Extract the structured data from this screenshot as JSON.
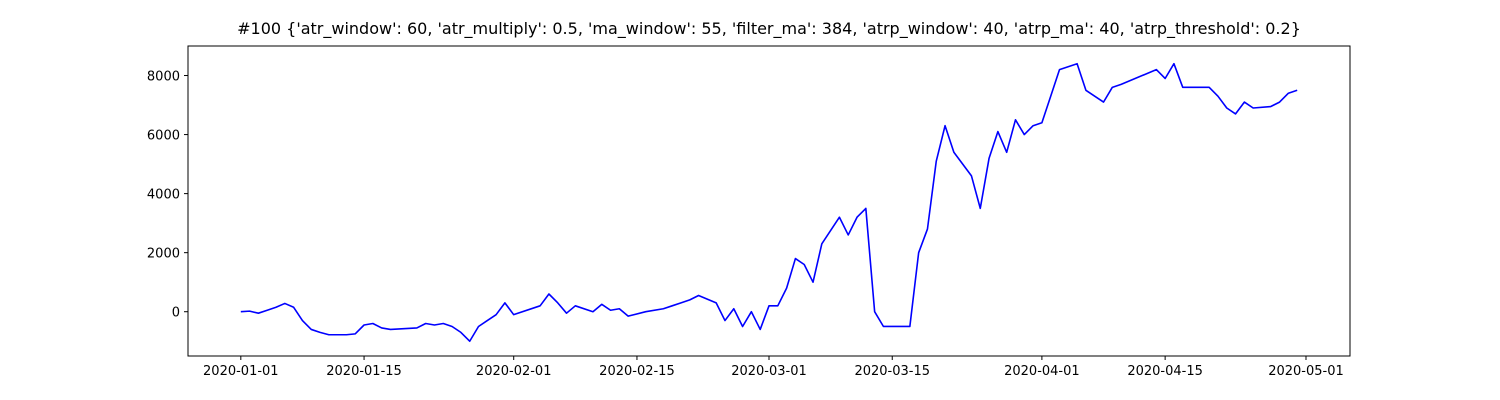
{
  "chart_data": {
    "type": "line",
    "title": "#100 {'atr_window': 60, 'atr_multiply': 0.5, 'ma_window': 55, 'filter_ma': 384, 'atrp_window': 40, 'atrp_ma': 40, 'atrp_threshold': 0.2}",
    "x": [
      "2020-01-01",
      "2020-01-02",
      "2020-01-03",
      "2020-01-04",
      "2020-01-05",
      "2020-01-06",
      "2020-01-07",
      "2020-01-08",
      "2020-01-09",
      "2020-01-10",
      "2020-01-11",
      "2020-01-13",
      "2020-01-14",
      "2020-01-15",
      "2020-01-16",
      "2020-01-17",
      "2020-01-18",
      "2020-01-21",
      "2020-01-22",
      "2020-01-23",
      "2020-01-24",
      "2020-01-25",
      "2020-01-26",
      "2020-01-27",
      "2020-01-28",
      "2020-01-29",
      "2020-01-30",
      "2020-01-31",
      "2020-02-01",
      "2020-02-04",
      "2020-02-05",
      "2020-02-06",
      "2020-02-07",
      "2020-02-08",
      "2020-02-10",
      "2020-02-11",
      "2020-02-12",
      "2020-02-13",
      "2020-02-14",
      "2020-02-16",
      "2020-02-18",
      "2020-02-19",
      "2020-02-20",
      "2020-02-21",
      "2020-02-22",
      "2020-02-24",
      "2020-02-25",
      "2020-02-26",
      "2020-02-27",
      "2020-02-28",
      "2020-02-29",
      "2020-03-01",
      "2020-03-02",
      "2020-03-03",
      "2020-03-04",
      "2020-03-05",
      "2020-03-06",
      "2020-03-07",
      "2020-03-09",
      "2020-03-10",
      "2020-03-11",
      "2020-03-12",
      "2020-03-13",
      "2020-03-14",
      "2020-03-17",
      "2020-03-18",
      "2020-03-19",
      "2020-03-20",
      "2020-03-21",
      "2020-03-22",
      "2020-03-24",
      "2020-03-25",
      "2020-03-26",
      "2020-03-27",
      "2020-03-28",
      "2020-03-29",
      "2020-03-30",
      "2020-03-31",
      "2020-04-01",
      "2020-04-02",
      "2020-04-03",
      "2020-04-05",
      "2020-04-06",
      "2020-04-07",
      "2020-04-08",
      "2020-04-09",
      "2020-04-10",
      "2020-04-14",
      "2020-04-15",
      "2020-04-16",
      "2020-04-17",
      "2020-04-20",
      "2020-04-21",
      "2020-04-22",
      "2020-04-23",
      "2020-04-24",
      "2020-04-25",
      "2020-04-27",
      "2020-04-28",
      "2020-04-29",
      "2020-04-30"
    ],
    "series": [
      {
        "color": "#0000ff",
        "values": [
          0,
          20,
          -50,
          50,
          150,
          280,
          150,
          -300,
          -600,
          -700,
          -780,
          -780,
          -750,
          -450,
          -400,
          -550,
          -600,
          -550,
          -400,
          -450,
          -400,
          -500,
          -700,
          -1000,
          -500,
          -300,
          -100,
          300,
          -100,
          200,
          600,
          300,
          -50,
          200,
          0,
          250,
          50,
          100,
          -150,
          0,
          100,
          200,
          300,
          400,
          550,
          300,
          -300,
          100,
          -500,
          0,
          -600,
          200,
          200,
          800,
          1800,
          1600,
          1000,
          2300,
          3200,
          2600,
          3200,
          3500,
          0,
          -500,
          -500,
          2000,
          2800,
          5100,
          6300,
          5400,
          4600,
          3500,
          5200,
          6100,
          5400,
          6500,
          6000,
          6300,
          6400,
          7300,
          8200,
          8400,
          7500,
          7300,
          7100,
          7600,
          7700,
          8200,
          7900,
          8400,
          7600,
          7600,
          7300,
          6900,
          6700,
          7100,
          6900,
          6950,
          7100,
          7400,
          7500
        ]
      }
    ],
    "xlim": [
      "2019-12-26",
      "2020-05-06"
    ],
    "xticks": [
      "2020-01-01",
      "2020-01-15",
      "2020-02-01",
      "2020-02-15",
      "2020-03-01",
      "2020-03-15",
      "2020-04-01",
      "2020-04-15",
      "2020-05-01"
    ],
    "ylim": [
      -1500,
      9000
    ],
    "yticks": [
      0,
      2000,
      4000,
      6000,
      8000
    ]
  }
}
